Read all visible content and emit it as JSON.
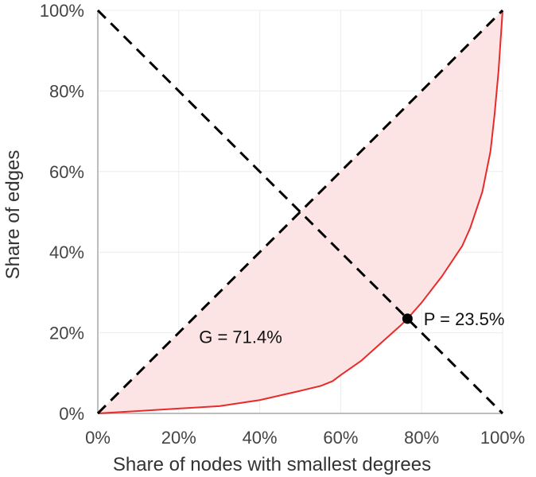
{
  "chart_data": {
    "type": "line",
    "title": "",
    "xlabel": "Share of nodes with smallest degrees",
    "ylabel": "Share of edges",
    "xlim": [
      0,
      100
    ],
    "ylim": [
      0,
      100
    ],
    "grid": true,
    "x_ticks": [
      "0%",
      "20%",
      "40%",
      "60%",
      "80%",
      "100%"
    ],
    "y_ticks": [
      "0%",
      "20%",
      "40%",
      "60%",
      "80%",
      "100%"
    ],
    "series": [
      {
        "name": "Lorenz curve",
        "color": "#e82a2a",
        "x": [
          0,
          10,
          20,
          30,
          40,
          50,
          55,
          58,
          60,
          65,
          70,
          75,
          76.5,
          80,
          85,
          90,
          92,
          95,
          97,
          98,
          99,
          100
        ],
        "y": [
          0,
          0.6,
          1.2,
          1.8,
          3.3,
          5.6,
          6.8,
          8.0,
          9.5,
          13.0,
          17.5,
          22.0,
          23.5,
          27.5,
          34.0,
          41.5,
          46.0,
          55.0,
          65.0,
          74.0,
          85.0,
          100
        ]
      },
      {
        "name": "Equality line",
        "color": "#000000",
        "dash": true,
        "x": [
          0,
          100
        ],
        "y": [
          0,
          100
        ]
      },
      {
        "name": "Anti-diagonal",
        "color": "#000000",
        "dash": true,
        "x": [
          0,
          100
        ],
        "y": [
          100,
          0
        ]
      }
    ],
    "fill_color": "#fde4e4",
    "point": {
      "x": 76.5,
      "y": 23.5,
      "color": "#000000"
    },
    "annotations": [
      {
        "id": "gini",
        "text": "G = 71.4%",
        "x": 25,
        "y": 19
      },
      {
        "id": "point",
        "text": "P = 23.5%",
        "x": 80.5,
        "y": 23.5
      }
    ]
  }
}
